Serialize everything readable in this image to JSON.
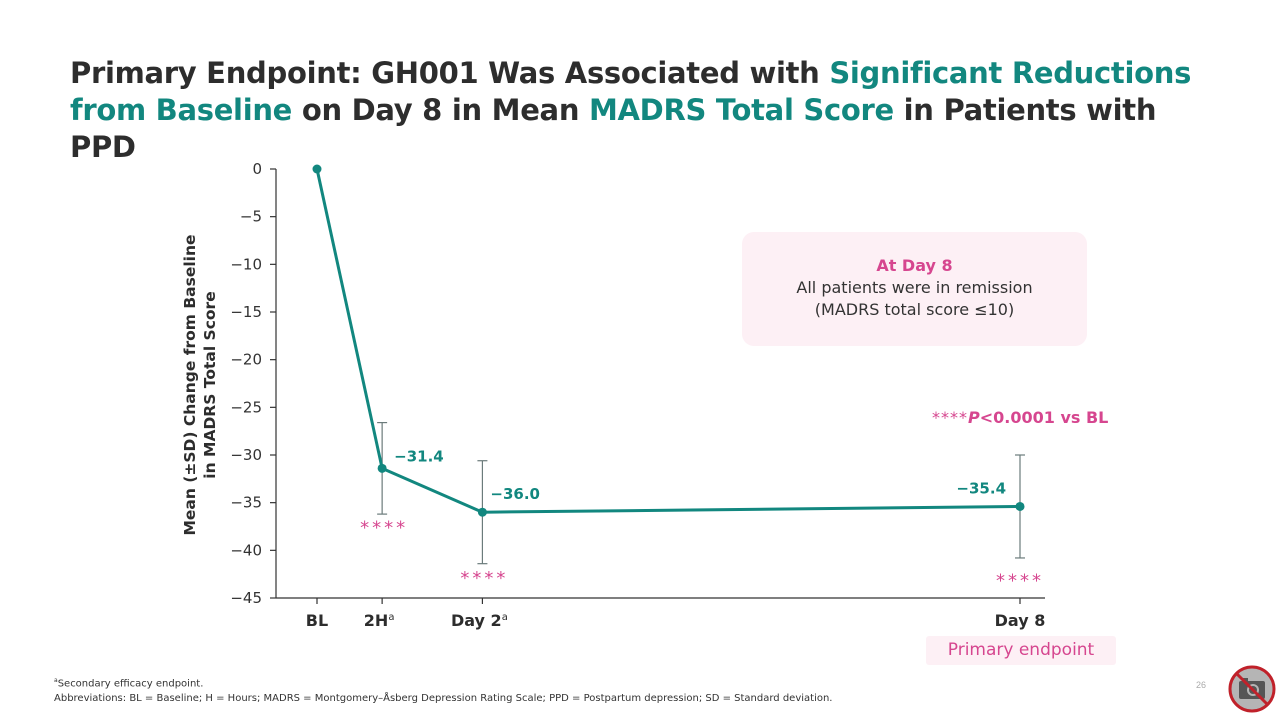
{
  "title": {
    "parts": [
      {
        "text": "Primary Endpoint: GH001 Was Associated with ",
        "highlight": false
      },
      {
        "text": "Significant Reductions from Baseline",
        "highlight": true
      },
      {
        "text": " on Day 8 in Mean ",
        "highlight": false
      },
      {
        "text": "MADRS Total Score",
        "highlight": true
      },
      {
        "text": " in Patients with PPD",
        "highlight": false
      }
    ]
  },
  "colors": {
    "teal": "#12877f",
    "pink": "#d6468f",
    "dark": "#2d2d2d",
    "errorbar": "#6b7b7b",
    "callout_bg": "#fdf0f5"
  },
  "chart_data": {
    "type": "line",
    "title": "",
    "xlabel": "",
    "ylabel_lines": [
      "Mean (±SD) Change from Baseline",
      "in MADRS Total Score"
    ],
    "ylim": [
      -45,
      0
    ],
    "yticks": [
      0,
      -5,
      -10,
      -15,
      -20,
      -25,
      -30,
      -35,
      -40,
      -45
    ],
    "ytick_labels": [
      "0",
      "−5",
      "−10",
      "−15",
      "−20",
      "−25",
      "−30",
      "−35",
      "−40",
      "−45"
    ],
    "categories": [
      {
        "label": "BL",
        "sup": "",
        "day": 0
      },
      {
        "label": "2H",
        "sup": "a",
        "day": 0.63
      },
      {
        "label": "Day 2",
        "sup": "a",
        "day": 1.6
      },
      {
        "label": "Day 8",
        "sup": "",
        "day": 6.8
      }
    ],
    "series": [
      {
        "name": "GH001",
        "values": [
          0,
          -31.4,
          -36.0,
          -35.4
        ],
        "sd": [
          null,
          4.8,
          5.4,
          5.4
        ],
        "data_labels": [
          "",
          "−31.4",
          "−36.0",
          "−35.4"
        ],
        "significance": [
          "",
          "****",
          "****",
          "****"
        ]
      }
    ],
    "grid": false,
    "legend": "none"
  },
  "callout": {
    "heading": "At Day 8",
    "line1": "All patients were in remission",
    "line2": "(MADRS total score ≤10)"
  },
  "pvalue_note": {
    "stars": "****",
    "p": "P",
    "rest": "<0.0001 vs BL"
  },
  "primary_endpoint_label": "Primary endpoint",
  "footnotes": {
    "line1_sup": "a",
    "line1": "Secondary efficacy endpoint.",
    "line2": "Abbreviations: BL = Baseline; H = Hours; MADRS = Montgomery–Åsberg Depression Rating Scale; PPD = Postpartum depression; SD = Standard deviation."
  },
  "page_number": "26",
  "icons": {
    "no_camera": "no-photography-icon"
  }
}
